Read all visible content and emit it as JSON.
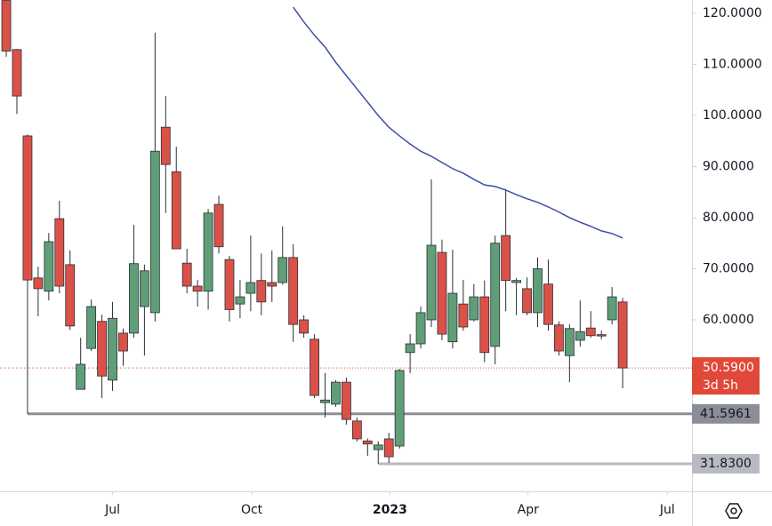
{
  "chart_data": {
    "type": "candlestick",
    "open": [
      122.5,
      112.9,
      96,
      68.2,
      65.6,
      79.8,
      70.8,
      46.4,
      54.4,
      59.7,
      48.2,
      57.4,
      57.4,
      62.6,
      61.4,
      97.7,
      89,
      71.1,
      66.6,
      65.6,
      82.6,
      71.8,
      63.1,
      65.2,
      67.7,
      67.3,
      67.3,
      72.2,
      60,
      56.2,
      43.8,
      43.5,
      47.8,
      40.2,
      36.3,
      34.6,
      36.7,
      35.3,
      53.6,
      55.3,
      60,
      73.2,
      55.7,
      63.1,
      60,
      64.5,
      54.8,
      76.5,
      67.3,
      66.1,
      61.4,
      67,
      59,
      53,
      56,
      58.4,
      57.1,
      60,
      63.5
    ],
    "high": [
      124,
      113,
      96.3,
      70.4,
      77,
      83.3,
      73.6,
      56.5,
      64,
      61,
      63.5,
      58.3,
      78.6,
      70.8,
      116.2,
      103.8,
      93.9,
      73.9,
      67.8,
      81.7,
      84.3,
      72.5,
      67.8,
      76.5,
      73,
      73.6,
      78.3,
      74.8,
      60.9,
      57.2,
      49.6,
      48.2,
      48.7,
      40.9,
      36.8,
      36.2,
      37.9,
      50.4,
      57.2,
      62.6,
      87.5,
      75.7,
      73.7,
      67.8,
      67,
      67.7,
      76.5,
      85.6,
      68.2,
      68.3,
      72.2,
      71.8,
      59.7,
      59.1,
      63.8,
      61.7,
      57.9,
      66.4,
      64.3
    ],
    "low": [
      111.5,
      100.3,
      41.5961,
      60.7,
      63.8,
      65.2,
      58,
      46.4,
      53.9,
      44.7,
      46.1,
      51,
      56.5,
      53,
      59.7,
      80.9,
      73.9,
      65.2,
      62.6,
      62,
      73,
      59.7,
      60.3,
      61.7,
      60.9,
      63.5,
      66.9,
      55.7,
      56.5,
      44.7,
      40.9,
      43,
      39.5,
      36.2,
      33.4,
      31.83,
      32,
      34.8,
      49.6,
      54.4,
      58.6,
      56,
      54.4,
      57.9,
      59.7,
      51.7,
      51.3,
      61.7,
      60.9,
      60.9,
      58.6,
      57.9,
      53,
      47.8,
      54.8,
      56.5,
      56.2,
      59.1,
      46.6
    ],
    "close": [
      112.6,
      103.8,
      67.8,
      66.1,
      75.3,
      66.6,
      58.8,
      51.3,
      62.6,
      49,
      60.3,
      53.9,
      71,
      69.6,
      93,
      90.4,
      73.9,
      66.6,
      65.6,
      80.9,
      74.3,
      62,
      64.5,
      67.3,
      63.5,
      66.6,
      72.2,
      59.1,
      57.4,
      45.2,
      44.3,
      47.8,
      40.5,
      36.7,
      35.7,
      35.5,
      33.2,
      50.1,
      55.3,
      61.4,
      74.6,
      57.2,
      65.2,
      58.6,
      64.5,
      53.6,
      75,
      67.7,
      67.7,
      61.4,
      70,
      59.1,
      53.9,
      58.3,
      57.7,
      56.9,
      57,
      64.5,
      50.59
    ],
    "up_color": "#5f9e76",
    "down_color": "#da5147",
    "moving_average": {
      "color": "#3c4fa8",
      "values": [
        null,
        null,
        null,
        null,
        null,
        null,
        null,
        null,
        null,
        null,
        null,
        null,
        null,
        null,
        null,
        null,
        null,
        null,
        null,
        null,
        null,
        null,
        null,
        null,
        null,
        null,
        null,
        121.2,
        118.3,
        115.7,
        113.4,
        110.4,
        107.8,
        105.2,
        102.6,
        100,
        97.7,
        96,
        94.4,
        93,
        92,
        90.8,
        89.6,
        88.7,
        87.5,
        86.4,
        86.1,
        85.4,
        84.5,
        83.7,
        83,
        82.1,
        81.1,
        80,
        79.1,
        78.3,
        77.4,
        76.9,
        76
      ]
    },
    "ylim": [
      26.43,
      122.6
    ],
    "yticks": [
      {
        "value": 60,
        "label": "60.0000"
      },
      {
        "value": 70,
        "label": "70.0000"
      },
      {
        "value": 80,
        "label": "80.0000"
      },
      {
        "value": 90,
        "label": "90.0000"
      },
      {
        "value": 100,
        "label": "100.0000"
      },
      {
        "value": 110,
        "label": "110.0000"
      },
      {
        "value": 120,
        "label": "120.0000"
      }
    ],
    "xlim": [
      -0.59,
      64.52
    ],
    "xticks": [
      {
        "value": 10,
        "label": "Jul"
      },
      {
        "value": 23.1,
        "label": "Oct"
      },
      {
        "value": 36.1,
        "label": "2023"
      },
      {
        "value": 49.1,
        "label": "Apr"
      },
      {
        "value": 62.2,
        "label": "Jul"
      }
    ],
    "last_price": {
      "value": 50.59,
      "label": "50.5900",
      "countdown": "3d 5h",
      "color": "#e0483a"
    },
    "levels": [
      {
        "value": 41.5961,
        "label": "41.5961",
        "color": "#8b8e97"
      },
      {
        "value": 31.83,
        "label": "31.8300",
        "color": "#b7bac2"
      }
    ]
  }
}
